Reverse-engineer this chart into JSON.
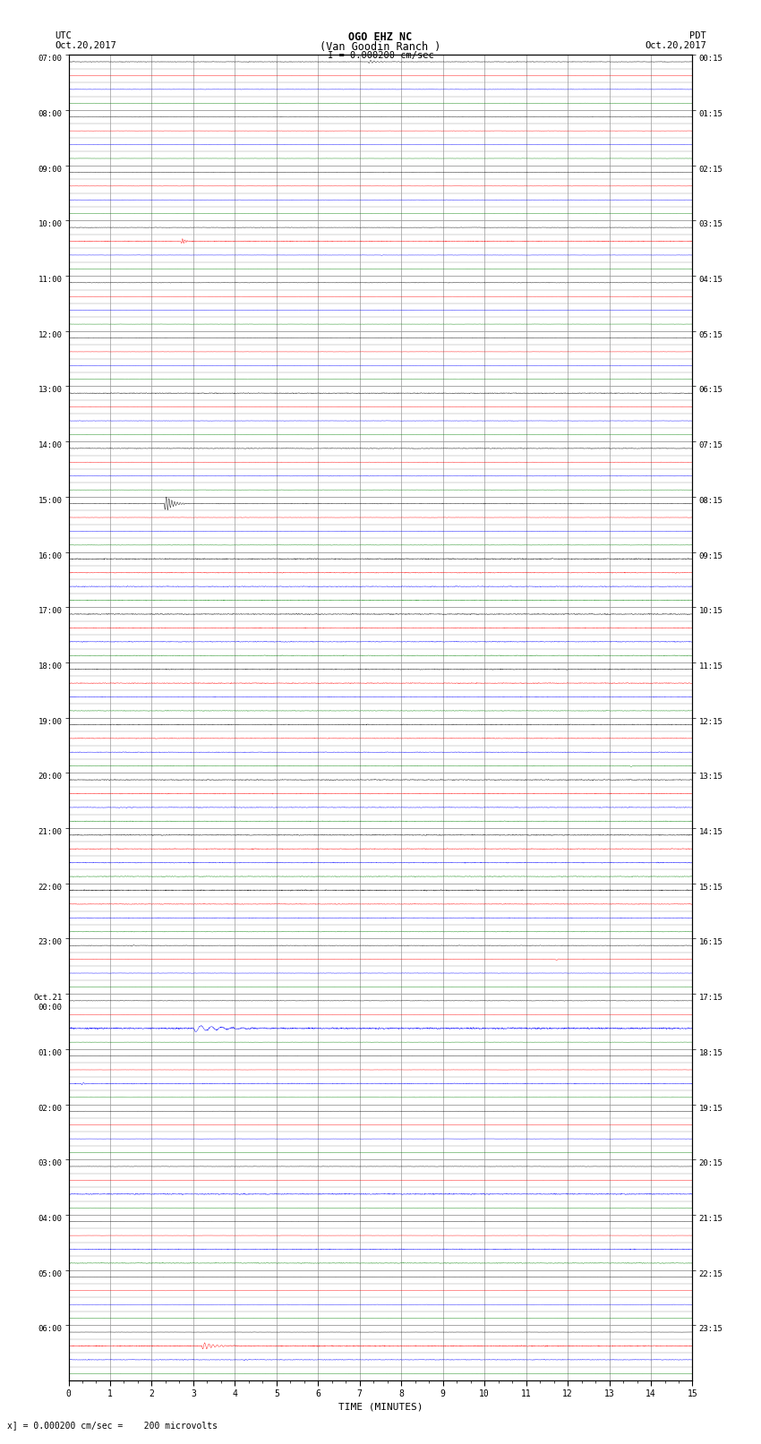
{
  "title_line1": "OGO EHZ NC",
  "title_line2": "(Van Goodin Ranch )",
  "scale_label": "I = 0.000200 cm/sec",
  "utc_label_1": "UTC",
  "utc_label_2": "Oct.20,2017",
  "pdt_label_1": "PDT",
  "pdt_label_2": "Oct.20,2017",
  "bottom_label": "x] = 0.000200 cm/sec =    200 microvolts",
  "xlabel": "TIME (MINUTES)",
  "left_times": [
    "07:00",
    "",
    "08:00",
    "",
    "09:00",
    "",
    "10:00",
    "",
    "11:00",
    "",
    "12:00",
    "",
    "13:00",
    "",
    "14:00",
    "",
    "15:00",
    "",
    "16:00",
    "",
    "17:00",
    "",
    "18:00",
    "",
    "19:00",
    "",
    "20:00",
    "",
    "21:00",
    "",
    "22:00",
    "",
    "23:00",
    "",
    "Oct.21\n00:00",
    "",
    "01:00",
    "",
    "02:00",
    "",
    "03:00",
    "",
    "04:00",
    "",
    "05:00",
    "",
    "06:00",
    ""
  ],
  "right_times": [
    "00:15",
    "",
    "01:15",
    "",
    "02:15",
    "",
    "03:15",
    "",
    "04:15",
    "",
    "05:15",
    "",
    "06:15",
    "",
    "07:15",
    "",
    "08:15",
    "",
    "09:15",
    "",
    "10:15",
    "",
    "11:15",
    "",
    "12:15",
    "",
    "13:15",
    "",
    "14:15",
    "",
    "15:15",
    "",
    "16:15",
    "",
    "17:15",
    "",
    "18:15",
    "",
    "19:15",
    "",
    "20:15",
    "",
    "21:15",
    "",
    "22:15",
    "",
    "23:15",
    ""
  ],
  "n_hours": 24,
  "n_traces_per_hour": 4,
  "n_minutes": 15,
  "bg_color": "#ffffff",
  "grid_color": "#999999",
  "colors": [
    "black",
    "red",
    "blue",
    "green"
  ],
  "figsize": [
    8.5,
    16.13
  ],
  "dpi": 100
}
